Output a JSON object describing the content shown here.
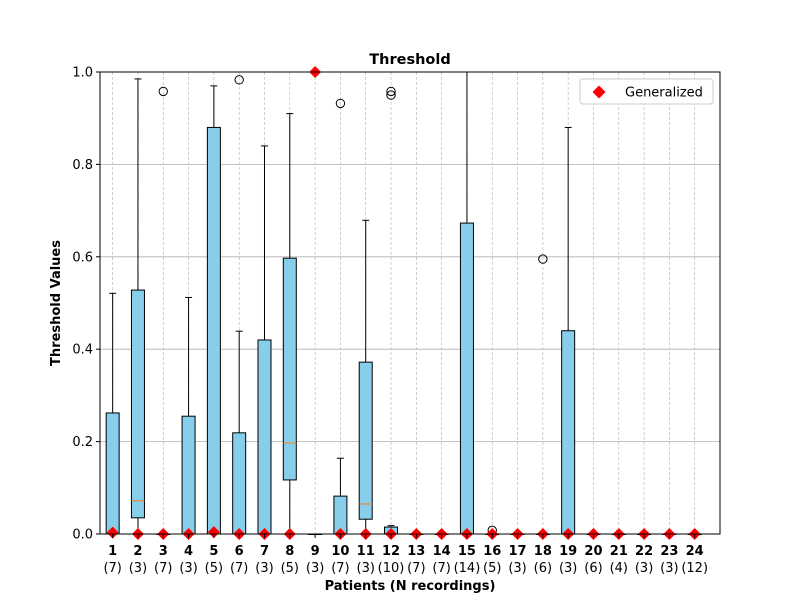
{
  "chart_data": {
    "type": "box",
    "title": "Threshold",
    "xlabel": "Patients (N recordings)",
    "ylabel": "Threshold Values",
    "ylim": [
      0,
      1
    ],
    "yticks": [
      "0.0",
      "0.2",
      "0.4",
      "0.6",
      "0.8",
      "1.0"
    ],
    "grid": true,
    "legend": {
      "position": "top-right",
      "label": "Generalized",
      "color": "#ff0000",
      "marker": "diamond"
    },
    "colors": {
      "box_fill": "#87ceeb",
      "median": "#ff7f0e",
      "grid": "#b0b0b0"
    },
    "patients": [
      {
        "id": "1",
        "n": "(7)",
        "q1": 0,
        "median": 0,
        "q3": 0.262,
        "whisker_low": 0,
        "whisker_high": 0.521,
        "outliers": [],
        "generalized": 0.003
      },
      {
        "id": "2",
        "n": "(3)",
        "q1": 0.035,
        "median": 0.072,
        "q3": 0.528,
        "whisker_low": 0,
        "whisker_high": 0.985,
        "outliers": [],
        "generalized": 0.0
      },
      {
        "id": "3",
        "n": "(7)",
        "q1": 0,
        "median": 0,
        "q3": 0,
        "whisker_low": 0,
        "whisker_high": 0,
        "outliers": [
          0.958
        ],
        "generalized": 0.0
      },
      {
        "id": "4",
        "n": "(3)",
        "q1": 0,
        "median": 0,
        "q3": 0.255,
        "whisker_low": 0,
        "whisker_high": 0.512,
        "outliers": [],
        "generalized": 0.0
      },
      {
        "id": "5",
        "n": "(5)",
        "q1": 0,
        "median": 0,
        "q3": 0.88,
        "whisker_low": 0,
        "whisker_high": 0.97,
        "outliers": [],
        "generalized": 0.004
      },
      {
        "id": "6",
        "n": "(7)",
        "q1": 0,
        "median": 0,
        "q3": 0.219,
        "whisker_low": 0,
        "whisker_high": 0.439,
        "outliers": [
          0.983
        ],
        "generalized": 0.0
      },
      {
        "id": "7",
        "n": "(3)",
        "q1": 0,
        "median": 0,
        "q3": 0.42,
        "whisker_low": 0,
        "whisker_high": 0.84,
        "outliers": [],
        "generalized": 0.0
      },
      {
        "id": "8",
        "n": "(5)",
        "q1": 0.117,
        "median": 0.197,
        "q3": 0.597,
        "whisker_low": 0,
        "whisker_high": 0.91,
        "outliers": [],
        "generalized": 0.0
      },
      {
        "id": "9",
        "n": "(3)",
        "q1": 0,
        "median": 0,
        "q3": 0,
        "whisker_low": 0,
        "whisker_high": 0,
        "outliers": [],
        "generalized": 1.0
      },
      {
        "id": "10",
        "n": "(7)",
        "q1": 0,
        "median": 0,
        "q3": 0.082,
        "whisker_low": 0,
        "whisker_high": 0.164,
        "outliers": [
          0.932
        ],
        "generalized": 0.0
      },
      {
        "id": "11",
        "n": "(3)",
        "q1": 0.032,
        "median": 0.065,
        "q3": 0.372,
        "whisker_low": 0,
        "whisker_high": 0.679,
        "outliers": [],
        "generalized": 0.0
      },
      {
        "id": "12",
        "n": "(10)",
        "q1": 0,
        "median": 0,
        "q3": 0.015,
        "whisker_low": 0,
        "whisker_high": 0.018,
        "outliers": [
          0.95,
          0.958
        ],
        "generalized": 0.0
      },
      {
        "id": "13",
        "n": "(7)",
        "q1": 0,
        "median": 0,
        "q3": 0,
        "whisker_low": 0,
        "whisker_high": 0,
        "outliers": [],
        "generalized": 0.0
      },
      {
        "id": "14",
        "n": "(7)",
        "q1": 0,
        "median": 0,
        "q3": 0,
        "whisker_low": 0,
        "whisker_high": 0,
        "outliers": [],
        "generalized": 0.0
      },
      {
        "id": "15",
        "n": "(14)",
        "q1": 0,
        "median": 0,
        "q3": 0.673,
        "whisker_low": 0,
        "whisker_high": 1.0,
        "outliers": [],
        "generalized": 0.0
      },
      {
        "id": "16",
        "n": "(5)",
        "q1": 0,
        "median": 0,
        "q3": 0,
        "whisker_low": 0,
        "whisker_high": 0,
        "outliers": [
          0.008
        ],
        "generalized": 0.0
      },
      {
        "id": "17",
        "n": "(3)",
        "q1": 0,
        "median": 0,
        "q3": 0,
        "whisker_low": 0,
        "whisker_high": 0,
        "outliers": [],
        "generalized": 0.0
      },
      {
        "id": "18",
        "n": "(6)",
        "q1": 0,
        "median": 0,
        "q3": 0,
        "whisker_low": 0,
        "whisker_high": 0,
        "outliers": [
          0.595
        ],
        "generalized": 0.0
      },
      {
        "id": "19",
        "n": "(3)",
        "q1": 0,
        "median": 0,
        "q3": 0.44,
        "whisker_low": 0,
        "whisker_high": 0.88,
        "outliers": [],
        "generalized": 0.0
      },
      {
        "id": "20",
        "n": "(6)",
        "q1": 0,
        "median": 0,
        "q3": 0,
        "whisker_low": 0,
        "whisker_high": 0,
        "outliers": [],
        "generalized": 0.0
      },
      {
        "id": "21",
        "n": "(4)",
        "q1": 0,
        "median": 0,
        "q3": 0,
        "whisker_low": 0,
        "whisker_high": 0,
        "outliers": [],
        "generalized": 0.0
      },
      {
        "id": "22",
        "n": "(3)",
        "q1": 0,
        "median": 0,
        "q3": 0,
        "whisker_low": 0,
        "whisker_high": 0,
        "outliers": [],
        "generalized": 0.0
      },
      {
        "id": "23",
        "n": "(3)",
        "q1": 0,
        "median": 0,
        "q3": 0,
        "whisker_low": 0,
        "whisker_high": 0,
        "outliers": [],
        "generalized": 0.0
      },
      {
        "id": "24",
        "n": "(12)",
        "q1": 0,
        "median": 0,
        "q3": 0,
        "whisker_low": 0,
        "whisker_high": 0,
        "outliers": [],
        "generalized": 0.0
      }
    ]
  }
}
